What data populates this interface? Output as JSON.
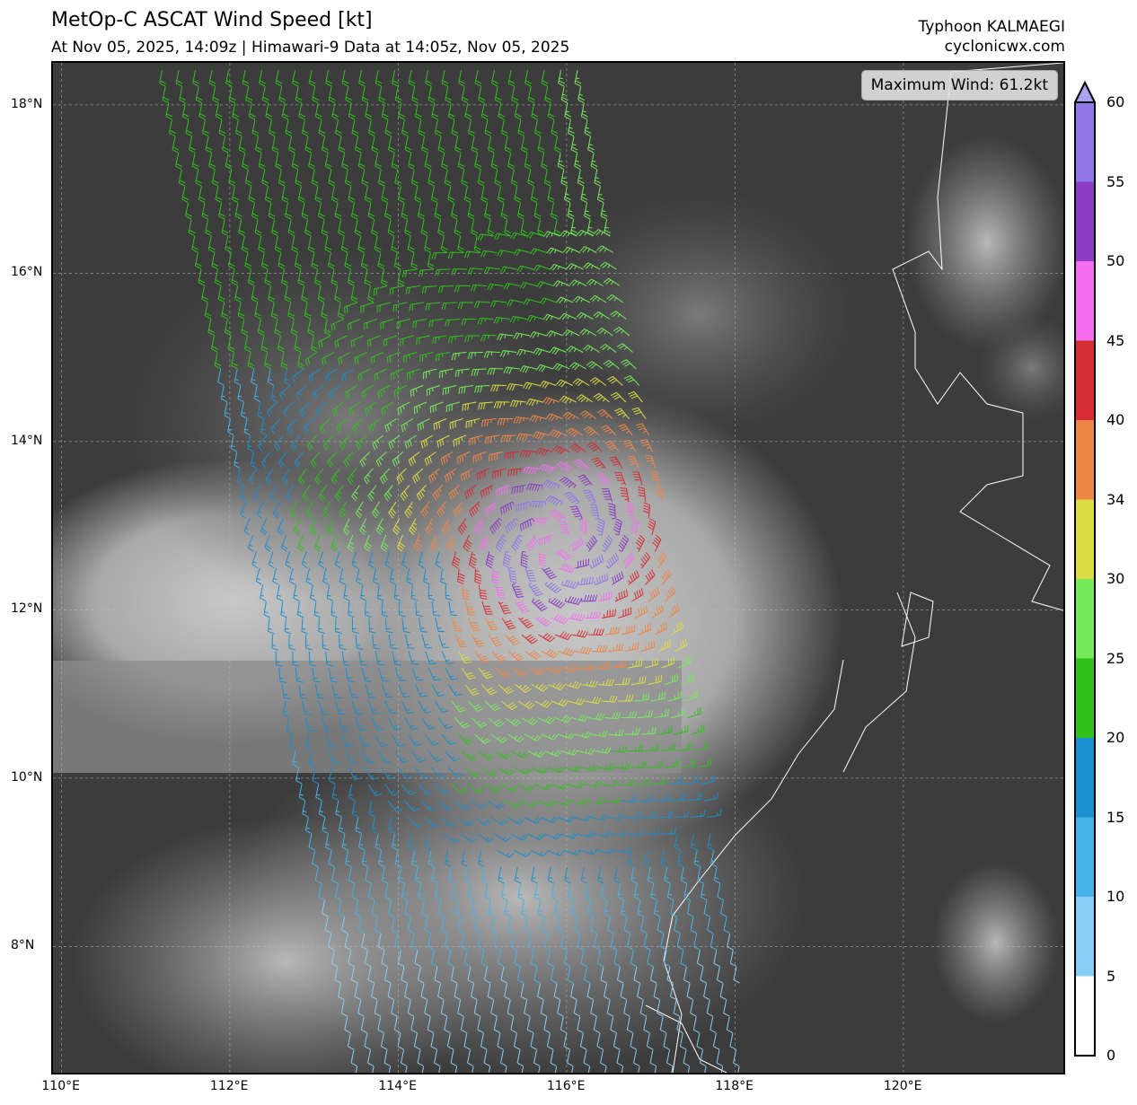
{
  "header": {
    "title": "MetOp-C ASCAT Wind Speed [kt]",
    "subtitle": "At Nov 05, 2025, 14:09z | Himawari-9 Data at 14:05z, Nov 05, 2025",
    "storm": "Typhoon KALMAEGI",
    "site": "cyclonicwx.com"
  },
  "map": {
    "max_wind_label": "Maximum Wind: 61.2kt",
    "lon_range": [
      109.9,
      121.9
    ],
    "lat_range": [
      6.5,
      18.5
    ],
    "lon_ticks": [
      "110°E",
      "112°E",
      "114°E",
      "116°E",
      "118°E",
      "120°E"
    ],
    "lat_ticks": [
      "18°N",
      "16°N",
      "14°N",
      "12°N",
      "10°N",
      "8°N"
    ],
    "grid": true,
    "background": "Himawari-9 infrared satellite imagery (grayscale)",
    "coastline_color": "#ffffff"
  },
  "colorbar": {
    "levels": [
      "0",
      "5",
      "10",
      "15",
      "20",
      "25",
      "30",
      "34",
      "40",
      "45",
      "50",
      "55",
      "60"
    ],
    "colors": [
      "#ffffff",
      "#87cef5",
      "#45b2ea",
      "#1b8fcf",
      "#30c11b",
      "#76eb5c",
      "#dddb44",
      "#ee8647",
      "#d62d35",
      "#f56ef0",
      "#8a3cc4",
      "#9178e8"
    ],
    "extend_color": "#a9a0ee"
  }
}
